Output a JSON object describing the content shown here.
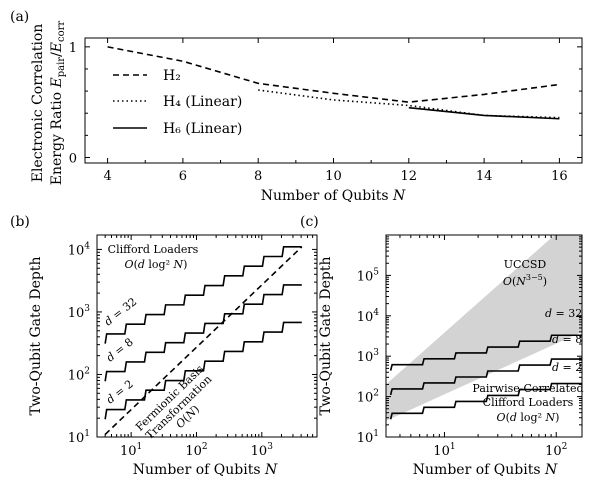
{
  "chart_data": [
    {
      "panel": "(a)",
      "type": "line",
      "xlabel": "Number of Qubits N",
      "ylabel_line1": "Electronic Correlation",
      "ylabel_line2": "Energy Ratio E_pair/E_corr",
      "xlim": [
        3.4,
        16.6
      ],
      "ylim": [
        -0.05,
        1.08
      ],
      "xticks": [
        4,
        6,
        8,
        10,
        12,
        14,
        16
      ],
      "yticks": [
        0,
        1
      ],
      "legend_position": "left",
      "series": [
        {
          "name": "H2",
          "style": "dashed",
          "x": [
            4,
            6,
            8,
            10,
            12,
            14,
            16
          ],
          "y": [
            1.0,
            0.87,
            0.67,
            0.58,
            0.5,
            0.57,
            0.66
          ]
        },
        {
          "name": "H4 (Linear)",
          "style": "dotted",
          "x": [
            8,
            10,
            12,
            14,
            16
          ],
          "y": [
            0.61,
            0.52,
            0.47,
            0.38,
            0.36
          ]
        },
        {
          "name": "H6 (Linear)",
          "style": "solid",
          "x": [
            12,
            14,
            16
          ],
          "y": [
            0.45,
            0.38,
            0.35
          ]
        }
      ]
    },
    {
      "panel": "(b)",
      "type": "line",
      "xscale": "log",
      "yscale": "log",
      "xlabel": "Number of Qubits N",
      "ylabel": "Two-Qubit Gate Depth",
      "xlim": [
        3,
        7000
      ],
      "ylim": [
        10,
        17000
      ],
      "xticks": [
        10,
        100,
        1000
      ],
      "yticks": [
        10,
        100,
        1000,
        10000
      ],
      "series": [
        {
          "name": "d = 32",
          "style": "step",
          "x": [
            4,
            4096
          ],
          "y": [
            520,
            11000
          ]
        },
        {
          "name": "d = 8",
          "style": "step",
          "x": [
            4,
            4096
          ],
          "y": [
            130,
            2700
          ]
        },
        {
          "name": "d = 2",
          "style": "step",
          "x": [
            4,
            4096
          ],
          "y": [
            32,
            680
          ]
        },
        {
          "name": "Fermionic Basis Transformation O(N)",
          "style": "dashed",
          "x": [
            4,
            4096
          ],
          "y": [
            11,
            11000
          ]
        }
      ],
      "annotations": {
        "clifford_line1": "Clifford Loaders",
        "clifford_line2": "O(d log² N)",
        "d32": "d = 32",
        "d8": "d = 8",
        "d2": "d = 2",
        "fermion_line1": "Fermionic Basis",
        "fermion_line2": "Transformation",
        "fermion_line3": "O(N)"
      }
    },
    {
      "panel": "(c)",
      "type": "area",
      "xscale": "log",
      "yscale": "log",
      "xlabel": "Number of Qubits N",
      "ylabel": "Two-Qubit Gate Depth",
      "xlim": [
        3,
        170
      ],
      "ylim": [
        10,
        1000000
      ],
      "xticks": [
        10,
        100
      ],
      "yticks": [
        10,
        100,
        1000,
        10000,
        100000
      ],
      "band": {
        "name": "UCCSD O(N^(3-5))",
        "x": [
          3,
          170
        ],
        "y_low": [
          25,
          4000
        ],
        "y_high": [
          200,
          4000000
        ]
      },
      "series": [
        {
          "name": "d = 32",
          "style": "step",
          "x": [
            3.3,
            170
          ],
          "y": [
            800,
            3300
          ]
        },
        {
          "name": "d = 8",
          "style": "step",
          "x": [
            3.3,
            170
          ],
          "y": [
            200,
            850
          ]
        },
        {
          "name": "d = 2",
          "style": "step",
          "x": [
            3.3,
            170
          ],
          "y": [
            50,
            210
          ]
        }
      ],
      "annotations": {
        "uccsd_line1": "UCCSD",
        "uccsd_line2": "O(N^{3−5})",
        "d32": "d = 32",
        "d8": "d = 8",
        "d2": "d = 2",
        "pair_line1": "Pairwise-Correlated",
        "pair_line2": "Clifford Loaders",
        "pair_line3": "O(d log² N)"
      }
    }
  ],
  "labels": {
    "legend_h2": "H₂",
    "legend_h4": "H₄ (Linear)",
    "legend_h6": "H₆ (Linear)"
  }
}
